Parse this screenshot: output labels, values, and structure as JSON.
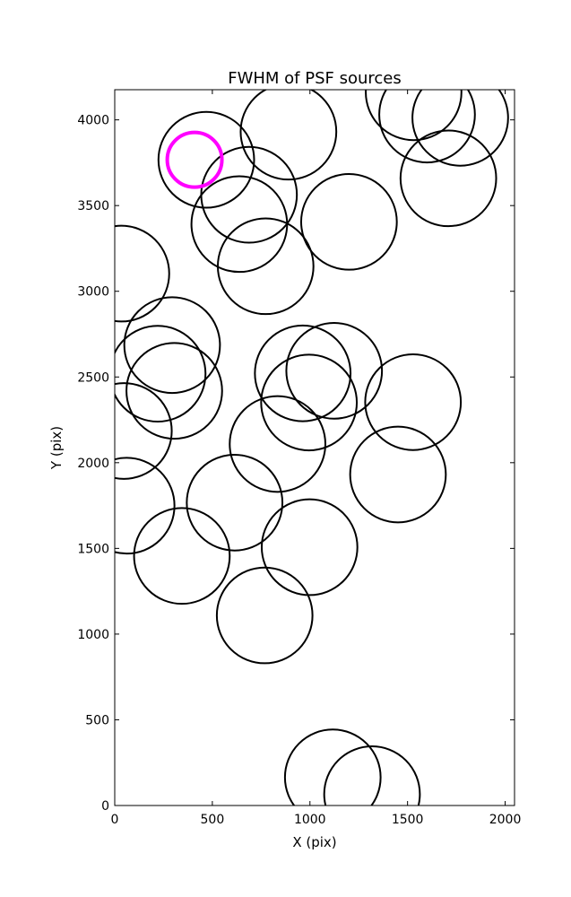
{
  "chart_data": {
    "type": "scatter",
    "title": "FWHM of PSF sources",
    "xlabel": "X (pix)",
    "ylabel": "Y (pix)",
    "xlim": [
      0,
      2048
    ],
    "ylim": [
      0,
      4176
    ],
    "xticks": [
      0,
      500,
      1000,
      1500,
      2000
    ],
    "yticks": [
      0,
      500,
      1000,
      1500,
      2000,
      2500,
      3000,
      3500,
      4000
    ],
    "grid": false,
    "marker": "open circle",
    "series": [
      {
        "color": "#000000",
        "points": [
          {
            "x": 469,
            "y": 3767,
            "r": 245
          },
          {
            "x": 890,
            "y": 3931,
            "r": 245
          },
          {
            "x": 1531,
            "y": 4161,
            "r": 245
          },
          {
            "x": 1600,
            "y": 4031,
            "r": 245
          },
          {
            "x": 1770,
            "y": 4012,
            "r": 245
          },
          {
            "x": 1709,
            "y": 3659,
            "r": 245
          },
          {
            "x": 688,
            "y": 3563,
            "r": 245
          },
          {
            "x": 638,
            "y": 3392,
            "r": 245
          },
          {
            "x": 1200,
            "y": 3405,
            "r": 245
          },
          {
            "x": 773,
            "y": 3146,
            "r": 245
          },
          {
            "x": 34,
            "y": 3103,
            "r": 245
          },
          {
            "x": 294,
            "y": 2686,
            "r": 245
          },
          {
            "x": 220,
            "y": 2519,
            "r": 245
          },
          {
            "x": 305,
            "y": 2419,
            "r": 245
          },
          {
            "x": 47,
            "y": 2185,
            "r": 245
          },
          {
            "x": 963,
            "y": 2521,
            "r": 245
          },
          {
            "x": 1124,
            "y": 2536,
            "r": 245
          },
          {
            "x": 995,
            "y": 2351,
            "r": 245
          },
          {
            "x": 1528,
            "y": 2353,
            "r": 245
          },
          {
            "x": 834,
            "y": 2109,
            "r": 245
          },
          {
            "x": 1451,
            "y": 1931,
            "r": 245
          },
          {
            "x": 61,
            "y": 1749,
            "r": 245
          },
          {
            "x": 614,
            "y": 1767,
            "r": 245
          },
          {
            "x": 344,
            "y": 1456,
            "r": 245
          },
          {
            "x": 998,
            "y": 1507,
            "r": 245
          },
          {
            "x": 768,
            "y": 1109,
            "r": 245
          },
          {
            "x": 1117,
            "y": 164,
            "r": 245
          },
          {
            "x": 1318,
            "y": 66,
            "r": 245
          }
        ]
      },
      {
        "color": "#ff00ff",
        "points": [
          {
            "x": 409,
            "y": 3767,
            "r": 140
          }
        ]
      }
    ]
  }
}
